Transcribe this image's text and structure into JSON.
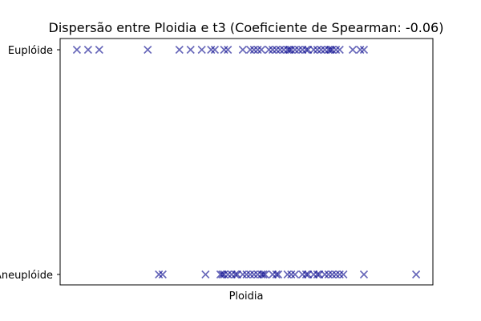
{
  "chart_data": {
    "type": "scatter",
    "title": "Dispersão entre Ploidia e t3 (Coeficiente de Spearman: -0.06)",
    "xlabel": "Ploidia",
    "ylabel": "",
    "x_ticks": "none",
    "y_categories": [
      "Aneuplóide",
      "Euplóide"
    ],
    "marker": "x",
    "marker_color": "#00008b",
    "grid": false,
    "xlim": [
      0,
      100
    ],
    "series": [
      {
        "category": "Euplóide",
        "x": [
          4.5,
          7.5,
          10.5,
          23.5,
          32,
          35,
          38,
          40.5,
          41.5,
          44,
          45,
          49,
          51,
          52,
          53,
          54,
          56,
          57,
          58,
          59,
          60,
          61,
          61.5,
          62,
          63,
          64,
          65,
          66,
          66.5,
          68,
          69,
          70,
          71,
          72,
          72.5,
          73,
          74,
          75,
          78.5,
          80.5,
          81.5
        ]
      },
      {
        "category": "Aneuplóide",
        "x": [
          26.5,
          27.5,
          39,
          43,
          43.5,
          44,
          45,
          46,
          47,
          47.5,
          49,
          50,
          51,
          52,
          53,
          54,
          54.5,
          55,
          57,
          58,
          58.5,
          61,
          62,
          63,
          65,
          66,
          66.5,
          68,
          69,
          69.5,
          71,
          72,
          73,
          74,
          75,
          76,
          81.5,
          95.5
        ]
      }
    ]
  }
}
